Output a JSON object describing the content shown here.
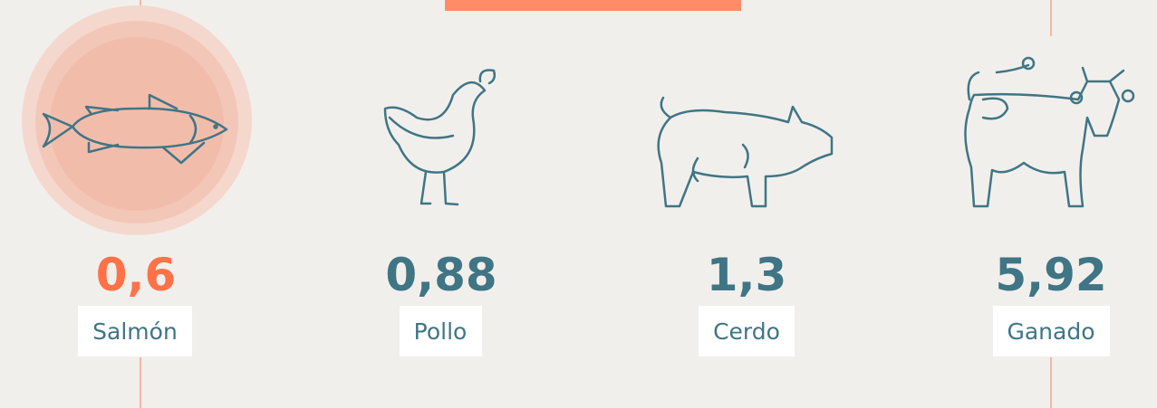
{
  "items": [
    {
      "value": "0,6",
      "label": "Salmón"
    },
    {
      "value": "0,88",
      "label": "Pollo"
    },
    {
      "value": "1,3",
      "label": "Cerdo"
    },
    {
      "value": "5,92",
      "label": "Ganado"
    }
  ]
}
